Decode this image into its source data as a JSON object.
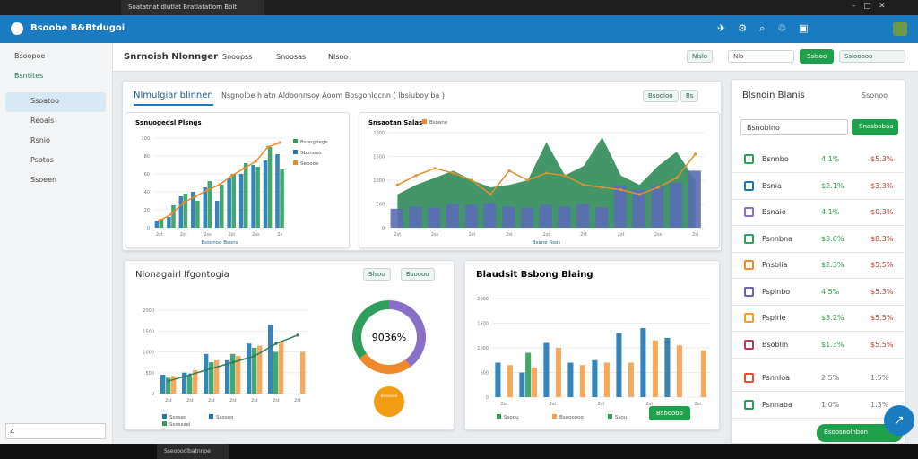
{
  "browser": {
    "tab": "Soatatnat dlutlat Bratlatatlom Bolt"
  },
  "app": {
    "title": "Bsoobe  B&Btdugoi"
  },
  "sidebar": {
    "items": [
      "Bsoopoe",
      "Bsntites",
      "Ssoatoo",
      "Reoais",
      "Rsnio",
      "Psotos",
      "Ssoeen"
    ],
    "search": "4"
  },
  "toolbar": {
    "title": "Snrnoish  Nlonnger",
    "dropdowns": [
      "Snoopss",
      "Snoosas",
      "Nlsoo"
    ],
    "buttons": [
      "Nlslo",
      "Nlo",
      "Sslsoo",
      "Sslooooo"
    ]
  },
  "top_card": {
    "tab": "Nlmulgiar blinnen",
    "subtitle": "Nsgnolpe h atn Aldoonnsoy  Aoom  Bosgonlocnn ( Ibsiuboy ba )",
    "buttons": [
      "Bsooloo",
      "Bs"
    ]
  },
  "charts": [
    {
      "type": "bar_line",
      "title": "Ssnuogedsl Plsngs",
      "legend": [
        "Bsongbege",
        "Sbonoso",
        "Seoooe"
      ],
      "legend_colors": [
        "#2e9e5b",
        "#1f77b4",
        "#f0892a"
      ],
      "ylim": [
        0,
        100
      ],
      "yticks": [
        0,
        20,
        40,
        60,
        80,
        100
      ],
      "categories": [
        "2st",
        null,
        "2st",
        null,
        "2ss",
        null,
        "2st",
        null,
        "2ss",
        null,
        "2s"
      ],
      "bars": [
        {
          "color": "#1f77b4",
          "values": [
            8,
            12,
            35,
            40,
            45,
            30,
            55,
            60,
            70,
            75,
            82
          ]
        },
        {
          "color": "#2e9e5b",
          "values": [
            10,
            25,
            38,
            30,
            52,
            48,
            60,
            72,
            68,
            90,
            65
          ]
        }
      ],
      "lines": [
        {
          "color": "#f0892a",
          "values": [
            8,
            15,
            28,
            35,
            42,
            48,
            58,
            66,
            74,
            90,
            95
          ]
        }
      ],
      "xlabel": "Bssonoo Bsons"
    },
    {
      "type": "bar_line",
      "title": "Snsaotan Salas",
      "legend": [
        "Bsoane"
      ],
      "legend_colors": [
        "#f0892a"
      ],
      "ylim": [
        0,
        2000
      ],
      "yticks": [
        0,
        500,
        1000,
        1500,
        2000
      ],
      "categories": [
        "2st",
        null,
        "2ss",
        null,
        "2st",
        null,
        "2st",
        null,
        "2st",
        null,
        "2st",
        null,
        "2st",
        null,
        "2ss",
        null,
        "2sl"
      ],
      "area": {
        "color": "#2e8b57",
        "values": [
          700,
          900,
          1050,
          1200,
          1000,
          850,
          900,
          1000,
          1800,
          1100,
          1300,
          1900,
          1100,
          900,
          1300,
          1600,
          1000
        ]
      },
      "bars": [
        {
          "color": "#5b6bb5",
          "values": [
            400,
            450,
            420,
            500,
            480,
            520,
            450,
            420,
            480,
            450,
            500,
            430,
            880,
            800,
            900,
            950,
            1200
          ]
        }
      ],
      "lines": [
        {
          "color": "#e0912e",
          "values": [
            900,
            1100,
            1250,
            1150,
            1000,
            700,
            1200,
            1000,
            1150,
            1100,
            900,
            850,
            800,
            700,
            850,
            1050,
            1550
          ]
        }
      ],
      "xlabel": "Bsane Rsos"
    },
    {
      "type": "bar_line",
      "title": null,
      "legend": [
        "Ssoseo",
        "Ssoseo",
        "Ssosssel"
      ],
      "legend_colors": [
        "#1f77b4",
        "#1f77b4",
        "#2e9e5b"
      ],
      "ylim": [
        0,
        2000
      ],
      "yticks": [
        0,
        500,
        1000,
        1500,
        2000
      ],
      "categories": [
        "2st",
        "2st",
        "2st",
        "2st",
        "2st",
        "2st",
        "2st"
      ],
      "bars": [
        {
          "color": "#1f77b4",
          "values": [
            450,
            500,
            950,
            800,
            1200,
            1650,
            0
          ]
        },
        {
          "color": "#2e9e5b",
          "values": [
            380,
            420,
            750,
            950,
            1100,
            1000,
            0
          ]
        },
        {
          "color": "#f5a04a",
          "values": [
            420,
            560,
            800,
            900,
            1150,
            1250,
            1000
          ]
        }
      ],
      "lines": [
        {
          "color": "#2e7d5b",
          "values": [
            300,
            450,
            600,
            750,
            900,
            1200,
            1400
          ]
        }
      ],
      "xlabel": null
    },
    {
      "type": "bar_line",
      "title": "Blaudsit Bsbong Blaing",
      "legend": [
        "Ssoou",
        "Bsoooooo",
        "Ssou"
      ],
      "legend_colors": [
        "#2e9e5b",
        "#f5a04a",
        "#2e9e5b"
      ],
      "ylim": [
        0,
        2000
      ],
      "yticks": [
        0,
        500,
        1000,
        1500,
        2000
      ],
      "categories": [
        "2st",
        null,
        "2st",
        null,
        "2st",
        null,
        "2st",
        null,
        "2st"
      ],
      "bars": [
        {
          "color": "#1f77b4",
          "values": [
            700,
            500,
            1100,
            700,
            750,
            1300,
            1400,
            1200,
            0
          ]
        },
        {
          "color": "#2e9e5b",
          "values": [
            0,
            900,
            0,
            0,
            0,
            0,
            0,
            0,
            0
          ]
        },
        {
          "color": "#f5a04a",
          "values": [
            650,
            600,
            1000,
            650,
            700,
            700,
            1150,
            1050,
            950
          ]
        }
      ],
      "lines": [],
      "xlabel": null
    }
  ],
  "bottom_left": {
    "title": "Nlonagairl Ifgontogia",
    "buttons": [
      "Slsoo",
      "Bsoooo"
    ]
  },
  "donut": {
    "type": "pie",
    "label": "9036%",
    "values": [
      40,
      25,
      35
    ],
    "colors": [
      "#8a6fc7",
      "#f0892a",
      "#2e9e5b"
    ],
    "badge": "Bsoosoo"
  },
  "bottom_right": {
    "button": "Bsooooo"
  },
  "right_panel": {
    "title": "Blsnoin Blanis",
    "header_btn": "Ssonoo",
    "search": "Bsnobino",
    "button": "Snasbobaa",
    "rows": [
      {
        "name": "Bsnnbo",
        "a": "4.1%",
        "b": "$5.3%",
        "icon": "#2e9e5b"
      },
      {
        "name": "Bsnia",
        "a": "$2.1%",
        "b": "$3.3%",
        "icon": "#1f77b4"
      },
      {
        "name": "Bsnaio",
        "a": "4.1%",
        "b": "$0.3%",
        "icon": "#8a6fc7"
      },
      {
        "name": "Psnnbna",
        "a": "$3.6%",
        "b": "$8.3%",
        "icon": "#2e9e5b"
      },
      {
        "name": "Pnsblia",
        "a": "$2.3%",
        "b": "$5.5%",
        "icon": "#f0892a"
      },
      {
        "name": "Pspinbo",
        "a": "4.5%",
        "b": "$5.3%",
        "icon": "#6b5fb0"
      },
      {
        "name": "Psplrle",
        "a": "$3.2%",
        "b": "$5.5%",
        "icon": "#f0a020"
      },
      {
        "name": "Bsoblin",
        "a": "$1.3%",
        "b": "$5.5%",
        "icon": "#c0395a"
      },
      {
        "name": "Psnnloa",
        "a": "2.5%",
        "b": "1.5%",
        "icon": "#e0502a"
      },
      {
        "name": "Psnnaba",
        "a": "1.0%",
        "b": "1.3%",
        "icon": "#2e9e5b"
      }
    ],
    "footer_btn": "Bsoosnolnbon"
  },
  "taskbar": {
    "app": "Sseoooolbatnnoe"
  }
}
